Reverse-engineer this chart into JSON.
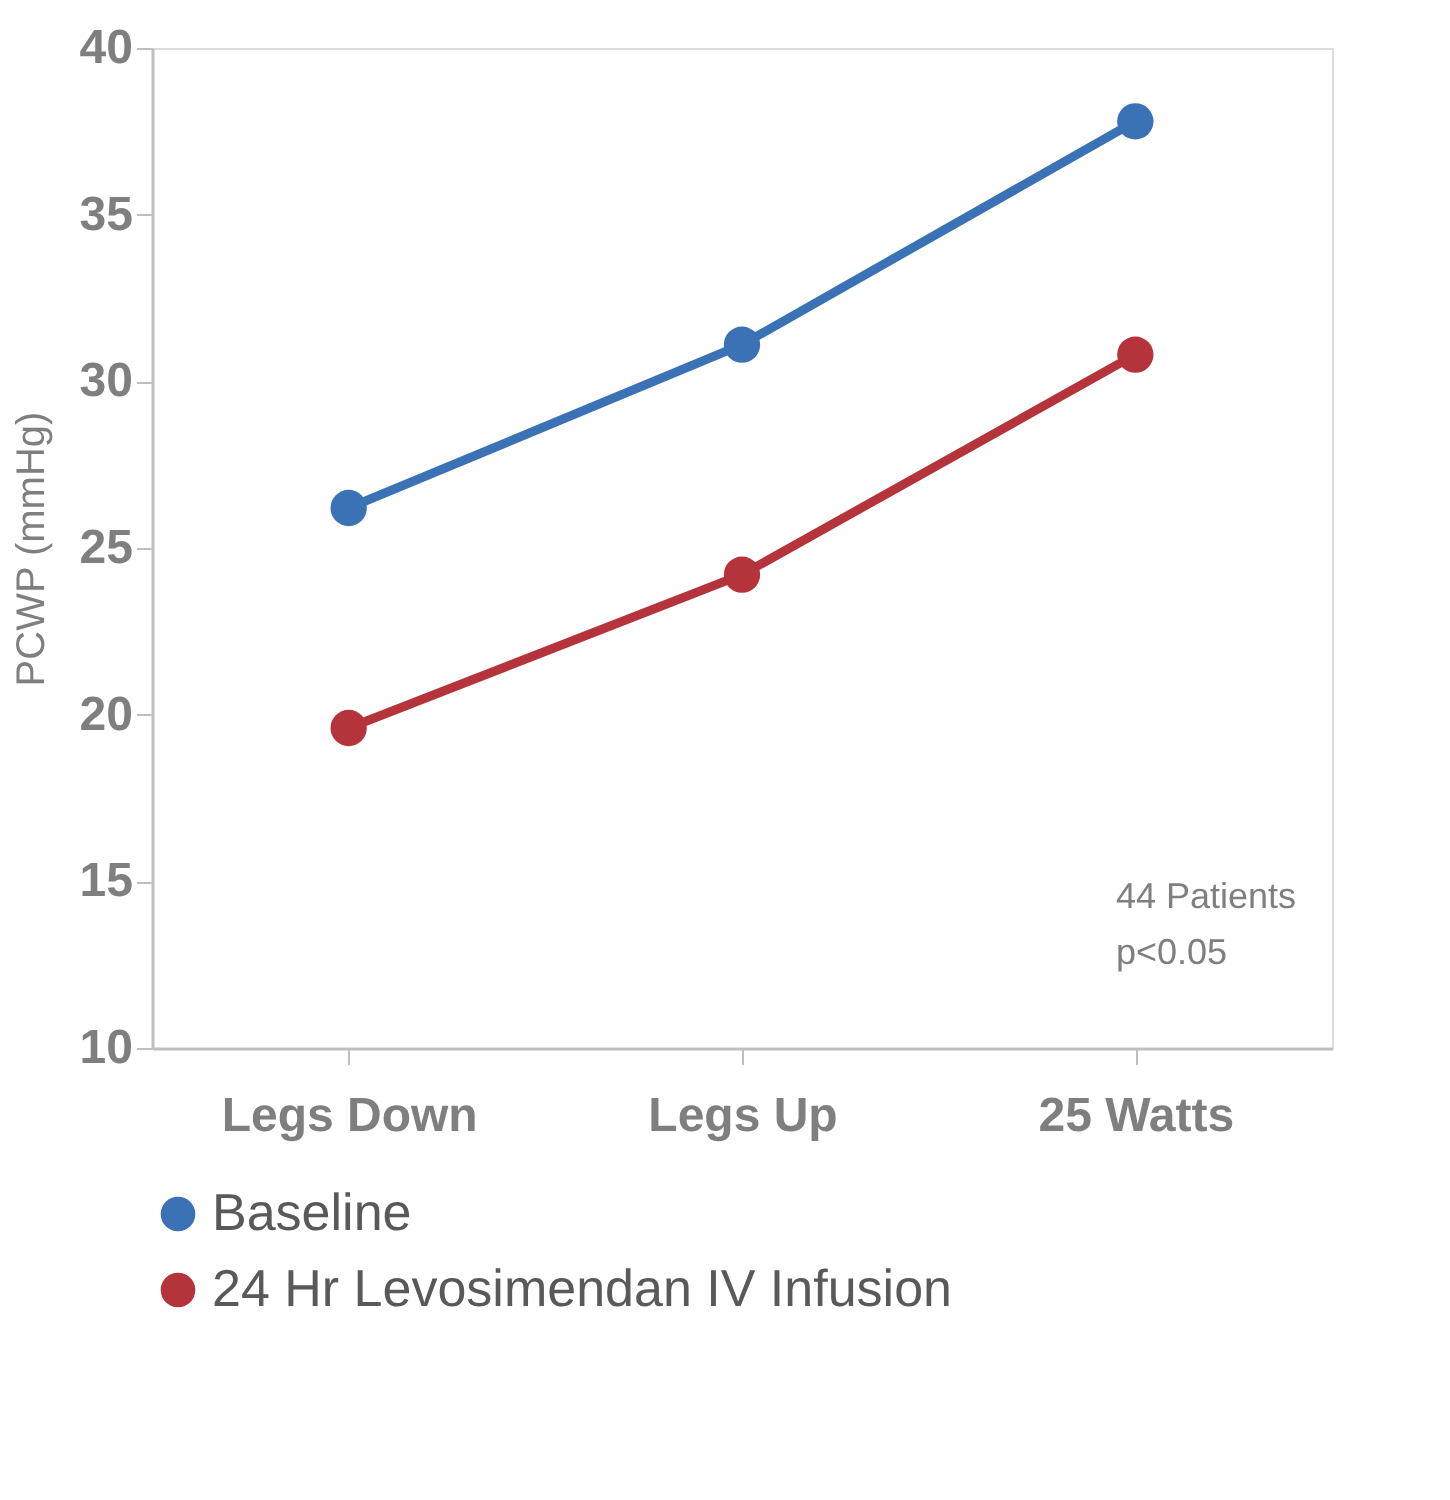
{
  "chart_data": {
    "type": "line",
    "ylabel": "PCWP (mmHg)",
    "categories": [
      "Legs Down",
      "Legs Up",
      "25 Watts"
    ],
    "series": [
      {
        "name": "Baseline",
        "color": "#3a72b5",
        "values": [
          26.2,
          31.1,
          37.8
        ]
      },
      {
        "name": "24 Hr Levosimendan IV Infusion",
        "color": "#b5333b",
        "values": [
          19.6,
          24.2,
          30.8
        ]
      }
    ],
    "ylim": [
      10,
      40
    ],
    "yticks": [
      10,
      15,
      20,
      25,
      30,
      35,
      40
    ],
    "grid": false,
    "legend": "bottom",
    "marker": "circle",
    "line_style": "solid",
    "annotations": [
      "44 Patients",
      "p<0.05"
    ]
  }
}
